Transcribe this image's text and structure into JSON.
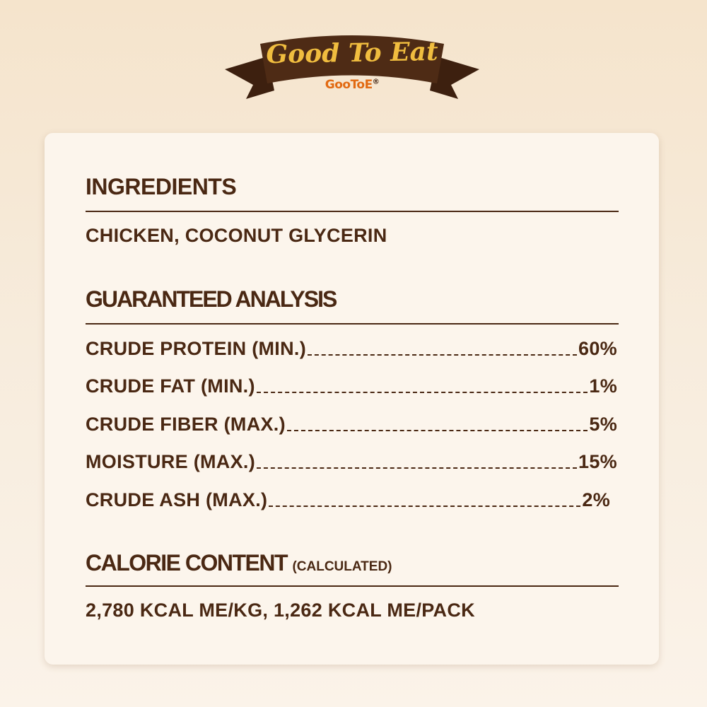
{
  "banner": {
    "title": "Good To Eat",
    "brand": "GooToE",
    "registered": "®",
    "colors": {
      "ribbon": "#4a2813",
      "title": "#f0bd3f",
      "brand": "#e26a12"
    }
  },
  "ingredients": {
    "heading": "INGREDIENTS",
    "text": "CHICKEN, COCONUT GLYCERIN"
  },
  "analysis": {
    "heading": "GUARANTEED ANALYSIS",
    "rows": [
      {
        "label": "CRUDE PROTEIN (MIN.)",
        "value": "60%"
      },
      {
        "label": "CRUDE FAT (MIN.)",
        "value": "1%"
      },
      {
        "label": "CRUDE FIBER (MAX.)",
        "value": "5%"
      },
      {
        "label": "MOISTURE (MAX.)",
        "value": "15%"
      },
      {
        "label": "CRUDE ASH (MAX.)",
        "value": "2%"
      }
    ]
  },
  "calories": {
    "heading": "CALORIE CONTENT",
    "note": "(CALCULATED)",
    "text": "2,780 KCAL ME/KG, 1,262 KCAL ME/PACK"
  }
}
